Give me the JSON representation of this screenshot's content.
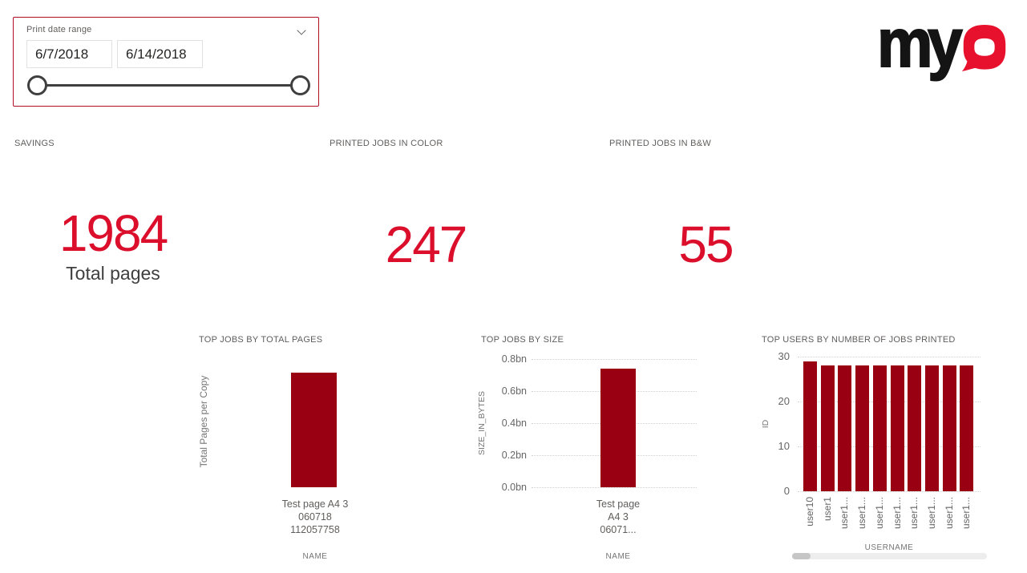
{
  "slicer": {
    "title": "Print date range",
    "start_date": "6/7/2018",
    "end_date": "6/14/2018"
  },
  "logo": {
    "text_black": "my",
    "text_red": "Q"
  },
  "kpis": [
    {
      "title": "SAVINGS",
      "value": "1984",
      "sublabel": "Total pages"
    },
    {
      "title": "PRINTED JOBS IN COLOR",
      "value": "247",
      "sublabel": ""
    },
    {
      "title": "PRINTED JOBS IN B&W",
      "value": "55",
      "sublabel": ""
    }
  ],
  "colors": {
    "kpi_value_red": "#DB0E2B",
    "bar_fill": "#990011",
    "logo_red": "#E8112D",
    "slicer_border_red": "#B00E25",
    "title_gray": "#605E5C"
  },
  "chart_data": [
    {
      "type": "bar",
      "title": "TOP JOBS BY TOTAL PAGES",
      "xlabel": "NAME",
      "ylabel": "Total Pages per Copy",
      "categories": [
        "Test page A4 3 060718 112057758"
      ],
      "values": [
        null
      ],
      "y_axis_labels_visible": false,
      "grid": "off"
    },
    {
      "type": "bar",
      "title": "TOP JOBS BY SIZE",
      "xlabel": "NAME",
      "ylabel": "SIZE_IN_BYTES",
      "categories": [
        "Test page A4 3 06071..."
      ],
      "values": [
        0.74
      ],
      "value_unit": "bn",
      "ylim": [
        0,
        0.8
      ],
      "yticks": [
        "0.8bn",
        "0.6bn",
        "0.4bn",
        "0.2bn",
        "0.0bn"
      ],
      "grid": "dotted"
    },
    {
      "type": "bar",
      "title": "TOP USERS BY NUMBER OF JOBS PRINTED",
      "xlabel": "USERNAME",
      "ylabel": "ID",
      "categories": [
        "user10",
        "user1",
        "user1...",
        "user1...",
        "user1...",
        "user1...",
        "user1...",
        "user1...",
        "user1...",
        "user1..."
      ],
      "values": [
        29,
        28,
        28,
        28,
        28,
        28,
        28,
        28,
        28,
        28
      ],
      "ylim": [
        0,
        30
      ],
      "yticks": [
        "30",
        "20",
        "10",
        "0"
      ],
      "grid": "dotted",
      "has_scrollbar": true
    }
  ]
}
